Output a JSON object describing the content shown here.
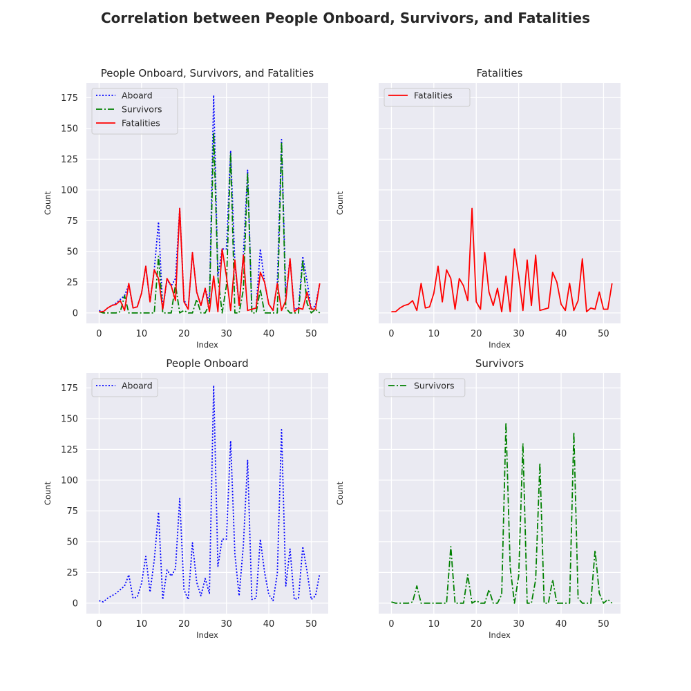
{
  "figure": {
    "suptitle": "Correlation between People Onboard, Survivors, and Fatalities"
  },
  "colors": {
    "Aboard": "#0000ff",
    "Survivors": "#008000",
    "Fatalities": "#ff0000",
    "axes_bg": "#eaeaf2",
    "grid": "#ffffff",
    "text": "#262626"
  },
  "chart_data": [
    {
      "type": "line",
      "title": "People Onboard, Survivors, and Fatalities",
      "xlabel": "Index",
      "ylabel": "Count",
      "xlim": [
        -3,
        54
      ],
      "ylim": [
        -8.5,
        187
      ],
      "xticks": [
        0,
        10,
        20,
        30,
        40,
        50
      ],
      "yticks": [
        0,
        25,
        50,
        75,
        100,
        125,
        150,
        175
      ],
      "show_ytick_labels": true,
      "grid": true,
      "legend": "top-left",
      "series": [
        {
          "name": "Aboard",
          "style": "dotted",
          "values": [
            2,
            1,
            4,
            6,
            8,
            11,
            14,
            23,
            4,
            5,
            16,
            38,
            9,
            35,
            74,
            3,
            27,
            22,
            28,
            85,
            11,
            3,
            49,
            17,
            6,
            20,
            8,
            177,
            30,
            52,
            52,
            132,
            40,
            6,
            47,
            116,
            3,
            4,
            52,
            25,
            7,
            2,
            24,
            141,
            14,
            44,
            3,
            4,
            46,
            26,
            3,
            6,
            24
          ]
        },
        {
          "name": "Survivors",
          "style": "dashdot",
          "values": [
            1,
            0,
            0,
            0,
            0,
            1,
            14,
            0,
            0,
            0,
            0,
            0,
            0,
            0,
            46,
            0,
            0,
            0,
            23,
            0,
            2,
            0,
            0,
            11,
            0,
            0,
            7,
            147,
            29,
            0,
            22,
            130,
            0,
            0,
            19,
            114,
            0,
            0,
            19,
            0,
            0,
            0,
            0,
            139,
            4,
            0,
            0,
            0,
            43,
            8,
            0,
            3,
            0
          ]
        },
        {
          "name": "Fatalities",
          "style": "solid",
          "values": [
            1,
            1,
            4,
            6,
            7,
            10,
            2,
            24,
            4,
            5,
            16,
            38,
            9,
            35,
            28,
            3,
            28,
            22,
            10,
            85,
            9,
            3,
            49,
            17,
            6,
            20,
            1,
            30,
            1,
            52,
            30,
            2,
            43,
            6,
            47,
            2,
            3,
            4,
            33,
            25,
            7,
            2,
            24,
            2,
            10,
            44,
            1,
            4,
            3,
            17,
            3,
            3,
            24
          ]
        }
      ]
    },
    {
      "type": "line",
      "title": "Fatalities",
      "xlabel": "Index",
      "ylabel": "Count",
      "xlim": [
        -3,
        54
      ],
      "ylim": [
        -8.5,
        187
      ],
      "xticks": [
        0,
        10,
        20,
        30,
        40,
        50
      ],
      "yticks": [
        0,
        25,
        50,
        75,
        100,
        125,
        150,
        175
      ],
      "show_ytick_labels": false,
      "grid": true,
      "legend": "top-left",
      "series": [
        {
          "name": "Fatalities",
          "style": "solid",
          "values": [
            1,
            1,
            4,
            6,
            7,
            10,
            2,
            24,
            4,
            5,
            16,
            38,
            9,
            35,
            28,
            3,
            28,
            22,
            10,
            85,
            9,
            3,
            49,
            17,
            6,
            20,
            1,
            30,
            1,
            52,
            30,
            2,
            43,
            6,
            47,
            2,
            3,
            4,
            33,
            25,
            7,
            2,
            24,
            2,
            10,
            44,
            1,
            4,
            3,
            17,
            3,
            3,
            24
          ]
        }
      ]
    },
    {
      "type": "line",
      "title": "People Onboard",
      "xlabel": "Index",
      "ylabel": "Count",
      "xlim": [
        -3,
        54
      ],
      "ylim": [
        -8.5,
        187
      ],
      "xticks": [
        0,
        10,
        20,
        30,
        40,
        50
      ],
      "yticks": [
        0,
        25,
        50,
        75,
        100,
        125,
        150,
        175
      ],
      "show_ytick_labels": true,
      "grid": true,
      "legend": "top-left",
      "series": [
        {
          "name": "Aboard",
          "style": "dotted",
          "values": [
            2,
            1,
            4,
            6,
            8,
            11,
            14,
            23,
            4,
            5,
            16,
            38,
            9,
            35,
            74,
            3,
            27,
            22,
            28,
            85,
            11,
            3,
            49,
            17,
            6,
            20,
            8,
            177,
            30,
            52,
            52,
            132,
            40,
            6,
            47,
            116,
            3,
            4,
            52,
            25,
            7,
            2,
            24,
            141,
            14,
            44,
            3,
            4,
            46,
            26,
            3,
            6,
            24
          ]
        }
      ]
    },
    {
      "type": "line",
      "title": "Survivors",
      "xlabel": "Index",
      "ylabel": "Count",
      "xlim": [
        -3,
        54
      ],
      "ylim": [
        -8.5,
        187
      ],
      "xticks": [
        0,
        10,
        20,
        30,
        40,
        50
      ],
      "yticks": [
        0,
        25,
        50,
        75,
        100,
        125,
        150,
        175
      ],
      "show_ytick_labels": false,
      "grid": true,
      "legend": "top-left",
      "series": [
        {
          "name": "Survivors",
          "style": "dashdot",
          "values": [
            1,
            0,
            0,
            0,
            0,
            1,
            14,
            0,
            0,
            0,
            0,
            0,
            0,
            0,
            46,
            0,
            0,
            0,
            23,
            0,
            2,
            0,
            0,
            11,
            0,
            0,
            7,
            147,
            29,
            0,
            22,
            130,
            0,
            0,
            19,
            114,
            0,
            0,
            19,
            0,
            0,
            0,
            0,
            139,
            4,
            0,
            0,
            0,
            43,
            8,
            0,
            3,
            0
          ]
        }
      ]
    }
  ]
}
